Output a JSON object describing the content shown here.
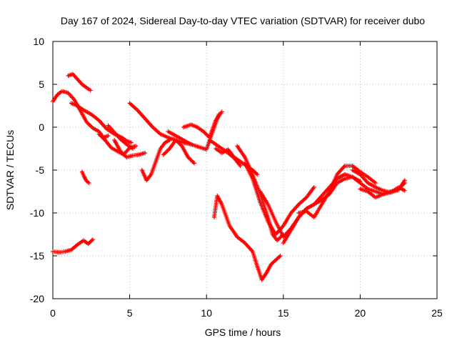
{
  "chart_data": {
    "type": "scatter",
    "title": "Day 167 of 2024, Sidereal Day-to-day VTEC variation (SDTVAR) for receiver dubo",
    "xlabel": "GPS time / hours",
    "ylabel": "SDTVAR / TECUs",
    "xlim": [
      0,
      25
    ],
    "ylim": [
      -20,
      10
    ],
    "xticks": [
      0,
      5,
      10,
      15,
      20,
      25
    ],
    "yticks": [
      -20,
      -15,
      -10,
      -5,
      0,
      5,
      10
    ],
    "grid": true,
    "marker": "plus",
    "color": "#ff0000",
    "series": [
      {
        "x": [
          0.0,
          0.3,
          0.6,
          1.0,
          1.4,
          1.8,
          2.2,
          2.6,
          3.0,
          3.3,
          3.6
        ],
        "y": [
          3.0,
          3.8,
          4.2,
          4.0,
          3.2,
          1.9,
          0.6,
          -0.1,
          -0.5,
          -1.2,
          -1.0
        ]
      },
      {
        "x": [
          1.0,
          1.3,
          1.6,
          1.9,
          2.2,
          2.45
        ],
        "y": [
          6.0,
          6.2,
          5.6,
          5.0,
          4.6,
          4.3
        ]
      },
      {
        "x": [
          1.2,
          1.6,
          2.0,
          2.5,
          3.0,
          3.5,
          4.0,
          4.5,
          4.8,
          5.1
        ],
        "y": [
          2.8,
          2.5,
          2.0,
          1.5,
          0.8,
          -0.2,
          -0.8,
          -1.2,
          -1.6,
          -1.8
        ]
      },
      {
        "x": [
          1.9,
          2.05,
          2.2,
          2.35
        ],
        "y": [
          -5.2,
          -5.8,
          -6.3,
          -6.5
        ]
      },
      {
        "x": [
          0.0,
          0.4,
          0.8,
          1.2,
          1.6,
          2.0,
          2.3,
          2.6
        ],
        "y": [
          -14.5,
          -14.6,
          -14.5,
          -14.3,
          -13.7,
          -13.2,
          -13.6,
          -13.1
        ]
      },
      {
        "x": [
          3.0,
          3.4,
          3.8,
          4.2,
          4.6,
          5.0,
          5.4
        ],
        "y": [
          -0.8,
          -1.5,
          -2.4,
          -2.8,
          -3.2,
          -2.4,
          -2.2
        ]
      },
      {
        "x": [
          4.0,
          4.4,
          4.8,
          5.2,
          5.6,
          6.0
        ],
        "y": [
          -1.5,
          -2.8,
          -3.5,
          -3.3,
          -3.2,
          -3.0
        ]
      },
      {
        "x": [
          3.6,
          4.0,
          4.4,
          4.8,
          5.2
        ],
        "y": [
          0.2,
          -0.6,
          -1.4,
          -2.0,
          -2.5
        ]
      },
      {
        "x": [
          5.0,
          5.5,
          6.0,
          6.5,
          7.0,
          7.5,
          8.0,
          8.5,
          9.0
        ],
        "y": [
          2.8,
          2.0,
          1.0,
          0.0,
          -0.8,
          -1.2,
          -1.5,
          -1.8,
          -2.0
        ]
      },
      {
        "x": [
          5.8,
          6.1,
          6.4,
          6.7,
          7.0,
          7.3,
          7.6
        ],
        "y": [
          -5.0,
          -6.2,
          -5.5,
          -4.0,
          -2.5,
          -1.8,
          -1.5
        ]
      },
      {
        "x": [
          7.5,
          8.0,
          8.5,
          9.0,
          9.5,
          10.0,
          10.4,
          10.8
        ],
        "y": [
          -0.5,
          -1.0,
          -1.5,
          -2.0,
          -2.3,
          -2.6,
          -0.5,
          1.5
        ]
      },
      {
        "x": [
          7.2,
          7.6,
          8.0,
          8.4,
          8.8,
          9.2
        ],
        "y": [
          -3.2,
          -2.5,
          -1.5,
          -2.2,
          -3.5,
          -4.2
        ]
      },
      {
        "x": [
          8.5,
          9.0,
          9.4,
          9.8,
          10.2,
          10.6,
          11.0
        ],
        "y": [
          0.0,
          0.3,
          0.0,
          -0.5,
          -1.2,
          0.8,
          1.8
        ]
      },
      {
        "x": [
          10.2,
          10.6,
          11.0,
          11.4,
          11.8,
          12.2
        ],
        "y": [
          -1.5,
          -2.0,
          -2.5,
          -3.0,
          -3.6,
          -4.5
        ]
      },
      {
        "x": [
          10.6,
          11.0,
          11.4,
          11.8,
          12.2,
          12.6,
          13.0,
          13.3
        ],
        "y": [
          -2.5,
          -3.0,
          -2.6,
          -3.5,
          -4.0,
          -4.5,
          -5.0,
          -5.5
        ]
      },
      {
        "x": [
          10.5,
          10.7,
          11.0,
          11.5,
          12.0,
          12.5,
          13.0,
          13.3,
          13.6,
          13.9,
          14.2,
          14.5,
          14.8
        ],
        "y": [
          -10.5,
          -8.0,
          -9.0,
          -11.5,
          -12.8,
          -13.5,
          -14.5,
          -16.2,
          -17.8,
          -17.0,
          -16.0,
          -15.5,
          -15.0
        ]
      },
      {
        "x": [
          12.0,
          12.5,
          13.0,
          13.5,
          14.0,
          14.3,
          14.6,
          15.0
        ],
        "y": [
          -2.2,
          -3.5,
          -5.5,
          -7.8,
          -10.5,
          -12.5,
          -13.2,
          -12.5
        ]
      },
      {
        "x": [
          12.5,
          13.0,
          13.5,
          14.0,
          14.5,
          15.0,
          15.5,
          16.0,
          16.5,
          17.0
        ],
        "y": [
          -4.2,
          -6.0,
          -8.8,
          -11.0,
          -12.5,
          -11.5,
          -10.0,
          -9.0,
          -8.2,
          -7.0
        ]
      },
      {
        "x": [
          13.5,
          14.0,
          14.5,
          15.0,
          15.5,
          16.0,
          16.5,
          17.0,
          17.5,
          18.0,
          18.5,
          19.0,
          19.5,
          20.0
        ],
        "y": [
          -7.5,
          -9.0,
          -11.0,
          -12.8,
          -11.8,
          -10.5,
          -9.5,
          -9.0,
          -8.5,
          -7.8,
          -6.5,
          -6.0,
          -5.8,
          -6.3
        ]
      },
      {
        "x": [
          15.0,
          15.5,
          16.0,
          16.5,
          17.0,
          17.5,
          18.0,
          18.5,
          19.0
        ],
        "y": [
          -13.5,
          -12.0,
          -10.5,
          -9.5,
          -9.0,
          -8.0,
          -7.0,
          -6.0,
          -5.5
        ]
      },
      {
        "x": [
          16.0,
          16.5,
          17.0,
          17.5,
          18.0,
          18.5,
          19.0,
          19.5,
          20.0,
          20.5,
          21.0
        ],
        "y": [
          -10.0,
          -9.8,
          -10.5,
          -9.0,
          -7.5,
          -5.5,
          -4.5,
          -4.5,
          -5.2,
          -5.8,
          -6.5
        ]
      },
      {
        "x": [
          18.5,
          19.0,
          19.5,
          20.0,
          20.5,
          21.0,
          21.5,
          22.0,
          22.5,
          22.9
        ],
        "y": [
          -6.0,
          -5.5,
          -5.8,
          -6.5,
          -7.2,
          -7.5,
          -7.8,
          -7.5,
          -7.2,
          -6.5
        ]
      },
      {
        "x": [
          19.5,
          20.0,
          20.5,
          21.0,
          21.5,
          22.0,
          22.5,
          22.9
        ],
        "y": [
          -5.0,
          -5.5,
          -6.5,
          -7.0,
          -7.4,
          -7.6,
          -7.3,
          -6.2
        ]
      },
      {
        "x": [
          20.0,
          20.5,
          21.0,
          21.5,
          22.0,
          22.5,
          22.9
        ],
        "y": [
          -7.2,
          -7.5,
          -8.2,
          -7.8,
          -7.6,
          -7.0,
          -7.4
        ]
      }
    ]
  }
}
